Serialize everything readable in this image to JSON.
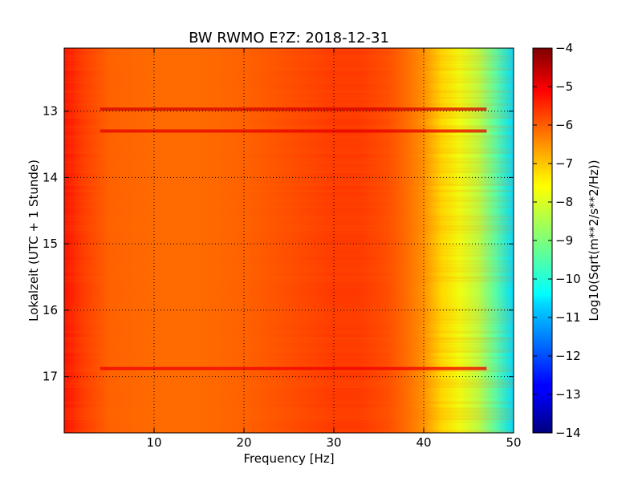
{
  "chart_data": {
    "type": "heatmap",
    "title": "BW RWMO E?Z: 2018-12-31",
    "xlabel": "Frequency [Hz]",
    "ylabel": "Lokalzeit (UTC + 1 Stunde)",
    "xlim": [
      0,
      50
    ],
    "ylim": [
      12.05,
      17.85
    ],
    "x_ticks": [
      10,
      20,
      30,
      40,
      50
    ],
    "y_ticks": [
      13,
      14,
      15,
      16,
      17
    ],
    "grid": true,
    "colormap": "jet",
    "colorbar": {
      "label": "Log10(Sqrt(m**2/s**2/Hz))",
      "range": [
        -14,
        -4
      ],
      "ticks": [
        -4,
        -5,
        -6,
        -7,
        -8,
        -9,
        -10,
        -11,
        -12,
        -13,
        -14
      ]
    },
    "frequency_profile": {
      "frequency_hz": [
        0,
        2,
        5,
        10,
        15,
        20,
        25,
        30,
        33,
        36,
        38,
        40,
        42,
        44,
        46,
        48,
        50
      ],
      "log_amplitude": [
        -5.4,
        -5.8,
        -6.2,
        -6.3,
        -6.3,
        -6.2,
        -6.0,
        -5.8,
        -5.8,
        -6.0,
        -6.3,
        -6.7,
        -7.4,
        -7.9,
        -8.4,
        -9.4,
        -10.6
      ]
    },
    "strong_bands": [
      {
        "time": 12.97,
        "log_amplitude": -4.8
      },
      {
        "time": 13.3,
        "log_amplitude": -5.0
      },
      {
        "time": 16.88,
        "log_amplitude": -5.1
      }
    ]
  }
}
